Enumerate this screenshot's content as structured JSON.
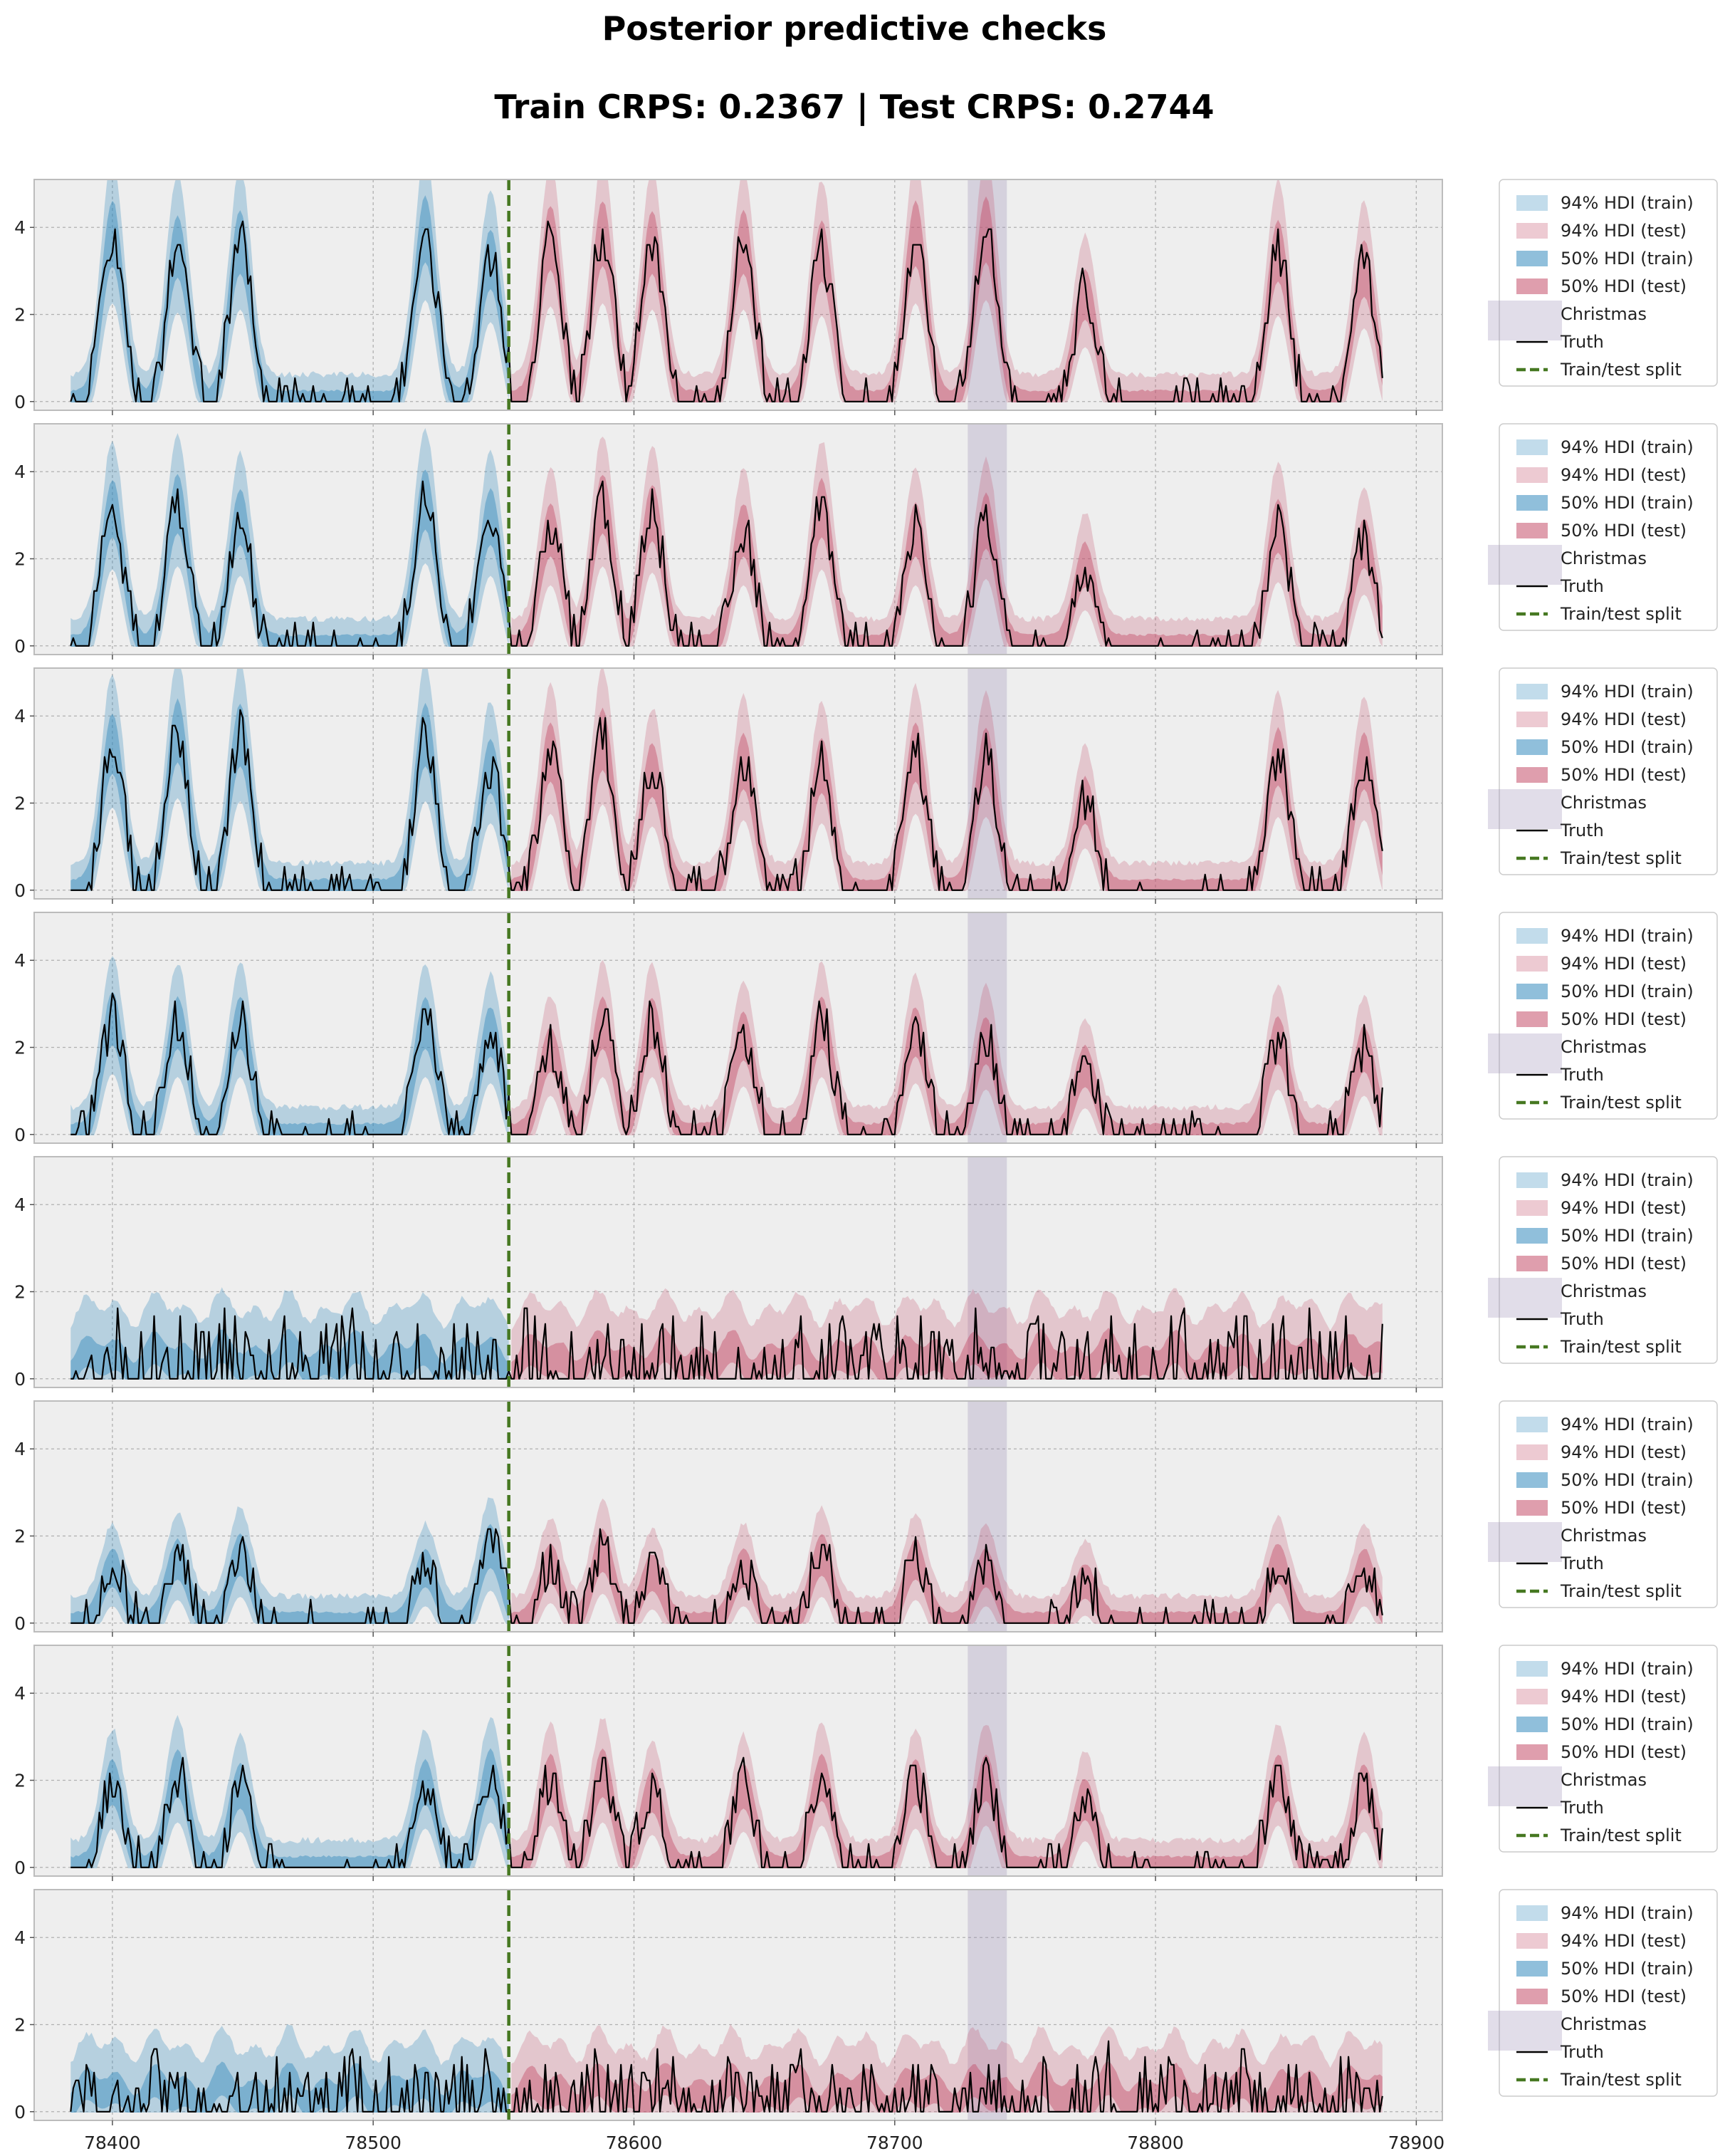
{
  "title_line1": "Posterior predictive checks",
  "title_line2": "Train CRPS: 0.2367 | Test CRPS: 0.2744",
  "colors": {
    "train": "#348abd",
    "test": "#c44e6a",
    "christmas": "#9b8fb5",
    "truth": "#000000",
    "split": "#467821",
    "background": "#eeeeee",
    "grid": "#b0b0b0"
  },
  "legend": [
    {
      "kind": "train94",
      "label": "94% HDI (train)"
    },
    {
      "kind": "test94",
      "label": "94% HDI (test)"
    },
    {
      "kind": "train50",
      "label": "50% HDI (train)"
    },
    {
      "kind": "test50",
      "label": "50% HDI (test)"
    },
    {
      "kind": "christmas",
      "label": "Christmas"
    },
    {
      "kind": "truth",
      "label": "Truth"
    },
    {
      "kind": "split",
      "label": "Train/test split"
    }
  ],
  "chart_data": {
    "type": "area",
    "panel_count": 8,
    "x_range": [
      78370,
      78910
    ],
    "ylim": [
      -0.2,
      5.1
    ],
    "xticks": [
      78400,
      78500,
      78600,
      78700,
      78800,
      78900
    ],
    "yticks": [
      0,
      2,
      4
    ],
    "data_x_range": [
      78384,
      78887
    ],
    "train_test_split_x": 78552,
    "christmas_span": [
      78728,
      78743
    ],
    "grid": true,
    "legend_position": "right, one per panel",
    "panels": [
      {
        "profile": "seasonal",
        "peak_train": [
          3.9,
          3.6,
          3.7,
          4.0,
          3.3
        ],
        "peak_test": [
          3.8,
          3.9,
          3.7,
          3.7,
          3.5,
          3.9,
          4.0,
          2.5,
          3.5,
          3.1
        ],
        "seed": 11
      },
      {
        "profile": "seasonal",
        "peak_train": [
          3.2,
          3.3,
          3.0,
          3.4,
          3.0
        ],
        "peak_test": [
          2.7,
          3.3,
          3.1,
          2.7,
          3.2,
          2.7,
          2.9,
          1.9,
          2.8,
          2.4
        ],
        "seed": 23
      },
      {
        "profile": "seasonal",
        "peak_train": [
          3.4,
          3.7,
          3.6,
          3.6,
          2.9
        ],
        "peak_test": [
          3.2,
          3.5,
          2.8,
          3.0,
          2.9,
          3.2,
          3.1,
          2.1,
          3.1,
          3.0
        ],
        "seed": 37
      },
      {
        "profile": "seasonal",
        "peak_train": [
          2.7,
          2.6,
          2.6,
          2.6,
          2.4
        ],
        "peak_test": [
          2.0,
          2.6,
          2.6,
          2.3,
          2.6,
          2.4,
          2.2,
          1.6,
          2.2,
          2.0
        ],
        "seed": 41
      },
      {
        "profile": "flat",
        "peak_train": [
          1.2,
          1.3,
          1.1,
          1.1,
          1.1
        ],
        "peak_test": [
          1.2,
          1.3,
          1.2,
          1.2,
          1.3,
          1.2,
          1.3,
          1.2,
          1.2,
          1.3
        ],
        "seed": 53
      },
      {
        "profile": "seasonal",
        "peak_train": [
          1.3,
          1.5,
          1.6,
          1.3,
          1.8
        ],
        "peak_test": [
          1.4,
          1.7,
          1.2,
          1.3,
          1.6,
          1.5,
          1.3,
          1.0,
          1.4,
          1.3
        ],
        "seed": 67
      },
      {
        "profile": "seasonal",
        "peak_train": [
          2.0,
          2.2,
          1.9,
          2.0,
          2.2
        ],
        "peak_test": [
          2.1,
          2.2,
          1.8,
          1.9,
          2.1,
          2.0,
          2.1,
          1.6,
          2.1,
          1.9
        ],
        "seed": 79
      },
      {
        "profile": "flat",
        "peak_train": [
          0.9,
          1.0,
          0.9,
          0.9,
          1.0
        ],
        "peak_test": [
          0.9,
          1.0,
          0.9,
          0.9,
          1.0,
          1.0,
          1.0,
          0.8,
          0.9,
          1.0
        ],
        "seed": 83
      }
    ]
  }
}
